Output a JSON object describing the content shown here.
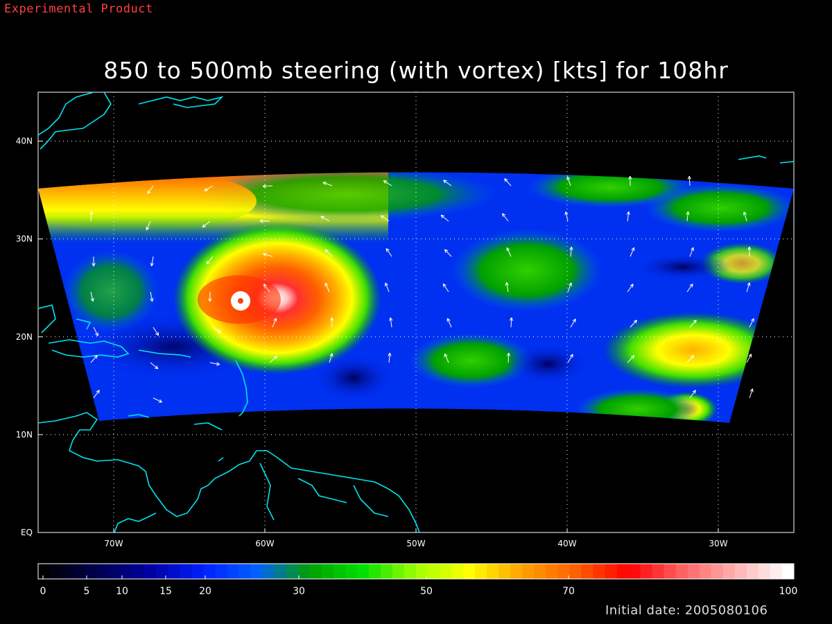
{
  "header": {
    "product_label": "Experimental Product",
    "title": "850 to 500mb steering (with vortex) [kts] for 108hr"
  },
  "map": {
    "lon_range": [
      -75,
      -25
    ],
    "lat_range": [
      0,
      45
    ],
    "lon_ticks": [
      {
        "lon": -70,
        "label": "70W"
      },
      {
        "lon": -60,
        "label": "60W"
      },
      {
        "lon": -50,
        "label": "50W"
      },
      {
        "lon": -40,
        "label": "40W"
      },
      {
        "lon": -30,
        "label": "30W"
      }
    ],
    "lat_ticks": [
      {
        "lat": 0,
        "label": "EQ"
      },
      {
        "lat": 10,
        "label": "10N"
      },
      {
        "lat": 20,
        "label": "20N"
      },
      {
        "lat": 30,
        "label": "30N"
      },
      {
        "lat": 40,
        "label": "40N"
      }
    ],
    "grid": true,
    "coastline_color": "#00e5ee",
    "vortex_center": {
      "lon": -61.5,
      "lat": 23.5
    },
    "field_units": "kts"
  },
  "colorbar": {
    "range": [
      0,
      100
    ],
    "tick_labels": [
      {
        "value": 0,
        "label": "0"
      },
      {
        "value": 5,
        "label": "5"
      },
      {
        "value": 10,
        "label": "10"
      },
      {
        "value": 15,
        "label": "15"
      },
      {
        "value": 20,
        "label": "20"
      },
      {
        "value": 30,
        "label": "30"
      },
      {
        "value": 50,
        "label": "50"
      },
      {
        "value": 70,
        "label": "70"
      },
      {
        "value": 100,
        "label": "100"
      }
    ],
    "colors": [
      "#000000",
      "#000050",
      "#0000a0",
      "#0020ff",
      "#0060ff",
      "#00a000",
      "#00e000",
      "#a0ff00",
      "#ffff00",
      "#ffa000",
      "#ff6000",
      "#ff0000",
      "#ff6060",
      "#ffb0b0",
      "#ffffff"
    ]
  },
  "footer": {
    "initial_date": "Initial date: 2005080106"
  }
}
